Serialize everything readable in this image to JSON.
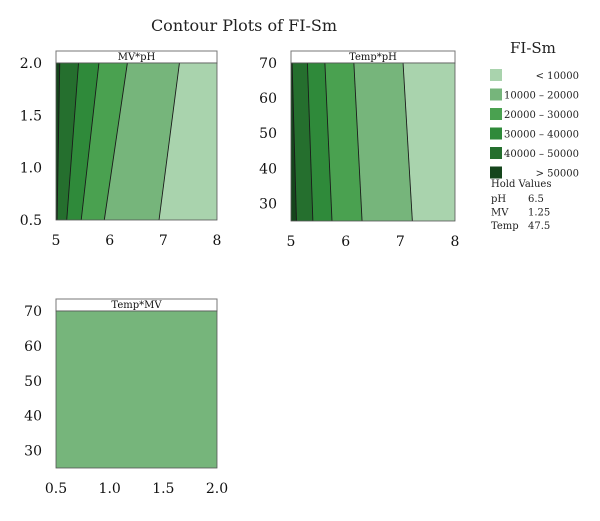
{
  "title": "Contour Plots of FI-Sm",
  "legend": {
    "title": "FI-Sm",
    "entries": [
      {
        "label": "< 10000",
        "color": "#a9d3ad"
      },
      {
        "label": "10000 – 20000",
        "color": "#76b57b"
      },
      {
        "label": "20000 – 30000",
        "color": "#4aa150"
      },
      {
        "label": "30000 – 40000",
        "color": "#2f8a3a"
      },
      {
        "label": "40000 – 50000",
        "color": "#256f2e"
      },
      {
        "label": "> 50000",
        "color": "#15451c"
      }
    ]
  },
  "hold_values": {
    "title": "Hold Values",
    "items": [
      {
        "name": "pH",
        "value": "6.5"
      },
      {
        "name": "MV",
        "value": "1.25"
      },
      {
        "name": "Temp",
        "value": "47.5"
      }
    ]
  },
  "chart_data": [
    {
      "type": "contour",
      "panel": "MV*pH",
      "x_var": "pH",
      "y_var": "MV",
      "xlim": [
        5,
        8
      ],
      "ylim": [
        0.5,
        2.0
      ],
      "xticks": [
        5,
        6,
        7,
        8
      ],
      "yticks": [
        0.5,
        1.0,
        1.5,
        2.0
      ],
      "ytick_labels": [
        "0.5",
        "1.0",
        "1.5",
        "2.0"
      ],
      "boundaries": [
        {
          "level": 50000,
          "x_at_ymin": 5.02,
          "x_at_ymax": 5.07
        },
        {
          "level": 40000,
          "x_at_ymin": 5.2,
          "x_at_ymax": 5.42
        },
        {
          "level": 30000,
          "x_at_ymin": 5.47,
          "x_at_ymax": 5.8
        },
        {
          "level": 20000,
          "x_at_ymin": 5.9,
          "x_at_ymax": 6.33
        },
        {
          "level": 10000,
          "x_at_ymin": 6.92,
          "x_at_ymax": 7.3
        }
      ]
    },
    {
      "type": "contour",
      "panel": "Temp*pH",
      "x_var": "pH",
      "y_var": "Temp",
      "xlim": [
        5,
        8
      ],
      "ylim": [
        25,
        70
      ],
      "xticks": [
        5,
        6,
        7,
        8
      ],
      "yticks": [
        30,
        40,
        50,
        60,
        70
      ],
      "ytick_labels": [
        "30",
        "40",
        "50",
        "60",
        "70"
      ],
      "boundaries": [
        {
          "level": 50000,
          "x_at_ymin": 5.1,
          "x_at_ymax": 5.02
        },
        {
          "level": 40000,
          "x_at_ymin": 5.4,
          "x_at_ymax": 5.3
        },
        {
          "level": 30000,
          "x_at_ymin": 5.75,
          "x_at_ymax": 5.62
        },
        {
          "level": 20000,
          "x_at_ymin": 6.3,
          "x_at_ymax": 6.15
        },
        {
          "level": 10000,
          "x_at_ymin": 7.22,
          "x_at_ymax": 7.05
        }
      ]
    },
    {
      "type": "contour",
      "panel": "Temp*MV",
      "x_var": "MV",
      "y_var": "Temp",
      "xlim": [
        0.5,
        2.0
      ],
      "ylim": [
        25,
        70
      ],
      "xticks": [
        0.5,
        1.0,
        1.5,
        2.0
      ],
      "xtick_labels": [
        "0.5",
        "1.0",
        "1.5",
        "2.0"
      ],
      "yticks": [
        30,
        40,
        50,
        60,
        70
      ],
      "ytick_labels": [
        "30",
        "40",
        "50",
        "60",
        "70"
      ],
      "fill_level": "10000 – 20000",
      "boundaries": []
    }
  ]
}
